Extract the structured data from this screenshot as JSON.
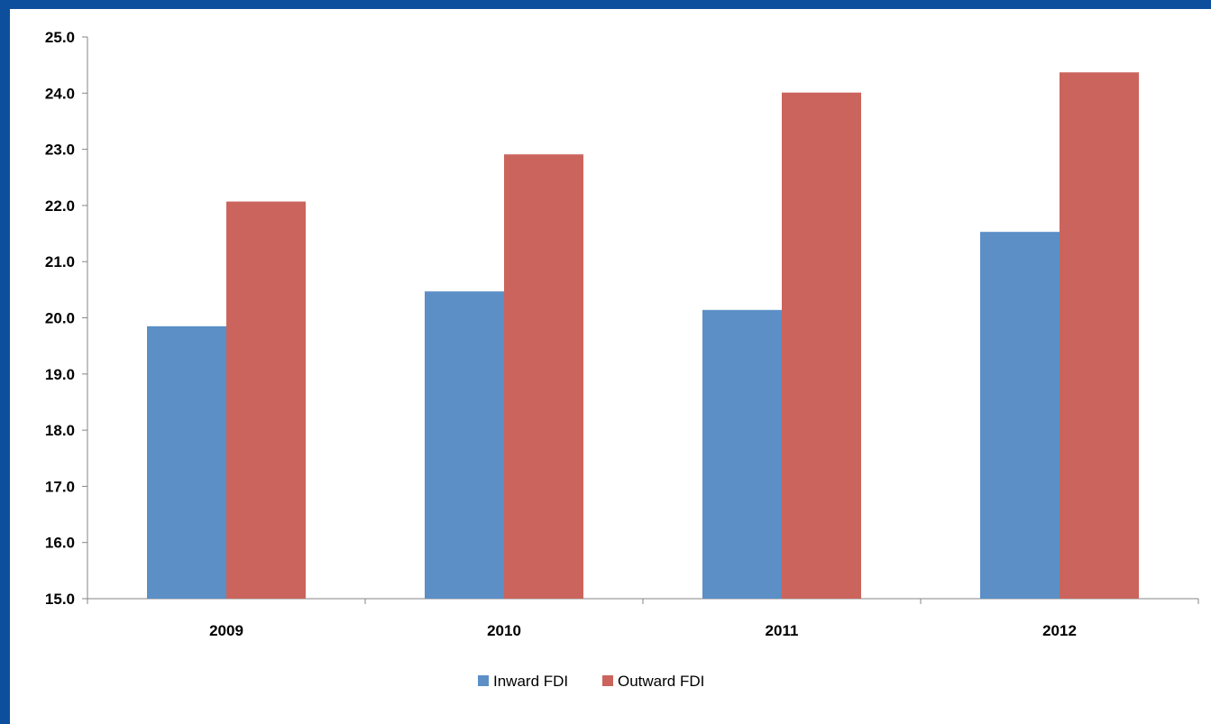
{
  "chart_data": {
    "type": "bar",
    "title": "",
    "xlabel": "",
    "ylabel": "",
    "categories": [
      "2009",
      "2010",
      "2011",
      "2012"
    ],
    "series": [
      {
        "name": "Inward FDI",
        "color": "#5b8fc6",
        "values": [
          19.85,
          20.47,
          20.14,
          21.53
        ]
      },
      {
        "name": "Outward FDI",
        "color": "#cb645c",
        "values": [
          22.07,
          22.91,
          24.01,
          24.37
        ]
      }
    ],
    "ylim": [
      15.0,
      25.0
    ],
    "yticks": [
      "15.0",
      "16.0",
      "17.0",
      "18.0",
      "19.0",
      "20.0",
      "21.0",
      "22.0",
      "23.0",
      "24.0",
      "25.0"
    ],
    "grid": false,
    "legend_position": "bottom"
  },
  "page": {
    "border_color": "#0d4f9c",
    "background": "#ffffff"
  }
}
